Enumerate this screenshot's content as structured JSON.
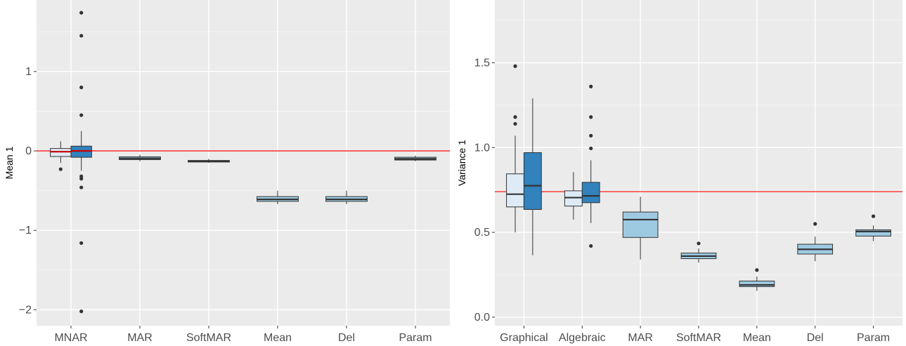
{
  "chart_data": [
    {
      "type": "box",
      "title": "",
      "xlabel": "",
      "ylabel": "Mean 1",
      "ylim": [
        -2.2,
        1.9
      ],
      "yticks": [
        -2,
        -1,
        0,
        1
      ],
      "ytick_labels": [
        "−2",
        "−1",
        "0",
        "1"
      ],
      "categories": [
        "MNAR",
        "MAR",
        "SoftMAR",
        "Mean",
        "Del",
        "Param"
      ],
      "reference_line": 0,
      "reference_color": "#ff0000",
      "grid": true,
      "boxes": [
        {
          "category": "MNAR",
          "fill": "#deebf7",
          "q1": -0.07,
          "median": -0.01,
          "q3": 0.03,
          "whisker_low": -0.15,
          "whisker_high": 0.12,
          "median_color": "#cc0000",
          "outliers": [
            -0.23
          ]
        },
        {
          "category": "MNAR",
          "fill": "#3182bd",
          "q1": -0.08,
          "median": 0.0,
          "q3": 0.06,
          "whisker_low": -0.25,
          "whisker_high": 0.25,
          "median_color": "#cc0000",
          "outliers": [
            1.74,
            1.45,
            0.8,
            0.45,
            -0.32,
            -0.35,
            -0.46,
            -1.16,
            -2.02
          ]
        },
        {
          "category": "MAR",
          "fill": "#9ecae1",
          "q1": -0.11,
          "median": -0.095,
          "q3": -0.075,
          "whisker_low": -0.13,
          "whisker_high": -0.05,
          "median_color": "#333333",
          "outliers": []
        },
        {
          "category": "SoftMAR",
          "fill": "#9ecae1",
          "q1": -0.14,
          "median": -0.13,
          "q3": -0.12,
          "whisker_low": -0.15,
          "whisker_high": -0.1,
          "median_color": "#333333",
          "outliers": []
        },
        {
          "category": "Mean",
          "fill": "#9ecae1",
          "q1": -0.635,
          "median": -0.61,
          "q3": -0.575,
          "whisker_low": -0.67,
          "whisker_high": -0.5,
          "median_color": "#333333",
          "outliers": []
        },
        {
          "category": "Del",
          "fill": "#9ecae1",
          "q1": -0.635,
          "median": -0.61,
          "q3": -0.575,
          "whisker_low": -0.67,
          "whisker_high": -0.5,
          "median_color": "#333333",
          "outliers": []
        },
        {
          "category": "Param",
          "fill": "#9ecae1",
          "q1": -0.115,
          "median": -0.1,
          "q3": -0.08,
          "whisker_low": -0.13,
          "whisker_high": -0.06,
          "median_color": "#333333",
          "outliers": []
        }
      ]
    },
    {
      "type": "box",
      "title": "",
      "xlabel": "",
      "ylabel": "Variance 1",
      "ylim": [
        -0.05,
        1.87
      ],
      "yticks": [
        0.0,
        0.5,
        1.0,
        1.5
      ],
      "ytick_labels": [
        "0.0",
        "0.5",
        "1.0",
        "1.5"
      ],
      "categories": [
        "Graphical",
        "Algebraic",
        "MAR",
        "SoftMAR",
        "Mean",
        "Del",
        "Param"
      ],
      "reference_line": 0.74,
      "reference_color": "#ff0000",
      "grid": true,
      "boxes": [
        {
          "category": "Graphical",
          "fill": "#deebf7",
          "q1": 0.65,
          "median": 0.725,
          "q3": 0.845,
          "whisker_low": 0.5,
          "whisker_high": 1.07,
          "median_color": "#333333",
          "outliers": [
            1.48,
            1.18,
            1.14
          ]
        },
        {
          "category": "Graphical",
          "fill": "#3182bd",
          "q1": 0.635,
          "median": 0.775,
          "q3": 0.97,
          "whisker_low": 0.365,
          "whisker_high": 1.29,
          "median_color": "#333333",
          "outliers": []
        },
        {
          "category": "Algebraic",
          "fill": "#deebf7",
          "q1": 0.655,
          "median": 0.705,
          "q3": 0.745,
          "whisker_low": 0.575,
          "whisker_high": 0.855,
          "median_color": "#333333",
          "outliers": []
        },
        {
          "category": "Algebraic",
          "fill": "#3182bd",
          "q1": 0.675,
          "median": 0.715,
          "q3": 0.795,
          "whisker_low": 0.555,
          "whisker_high": 0.925,
          "median_color": "#333333",
          "outliers": [
            1.36,
            1.18,
            1.07,
            0.995,
            0.42
          ]
        },
        {
          "category": "MAR",
          "fill": "#9ecae1",
          "q1": 0.47,
          "median": 0.575,
          "q3": 0.62,
          "whisker_low": 0.34,
          "whisker_high": 0.71,
          "median_color": "#333333",
          "outliers": []
        },
        {
          "category": "SoftMAR",
          "fill": "#9ecae1",
          "q1": 0.345,
          "median": 0.36,
          "q3": 0.378,
          "whisker_low": 0.322,
          "whisker_high": 0.405,
          "median_color": "#333333",
          "outliers": [
            0.435
          ]
        },
        {
          "category": "Mean",
          "fill": "#9ecae1",
          "q1": 0.18,
          "median": 0.19,
          "q3": 0.213,
          "whisker_low": 0.155,
          "whisker_high": 0.24,
          "median_color": "#333333",
          "outliers": [
            0.278
          ]
        },
        {
          "category": "Del",
          "fill": "#9ecae1",
          "q1": 0.372,
          "median": 0.4,
          "q3": 0.43,
          "whisker_low": 0.33,
          "whisker_high": 0.475,
          "median_color": "#333333",
          "outliers": [
            0.55
          ]
        },
        {
          "category": "Param",
          "fill": "#9ecae1",
          "q1": 0.478,
          "median": 0.505,
          "q3": 0.515,
          "whisker_low": 0.448,
          "whisker_high": 0.54,
          "median_color": "#333333",
          "outliers": [
            0.595
          ]
        }
      ]
    }
  ]
}
